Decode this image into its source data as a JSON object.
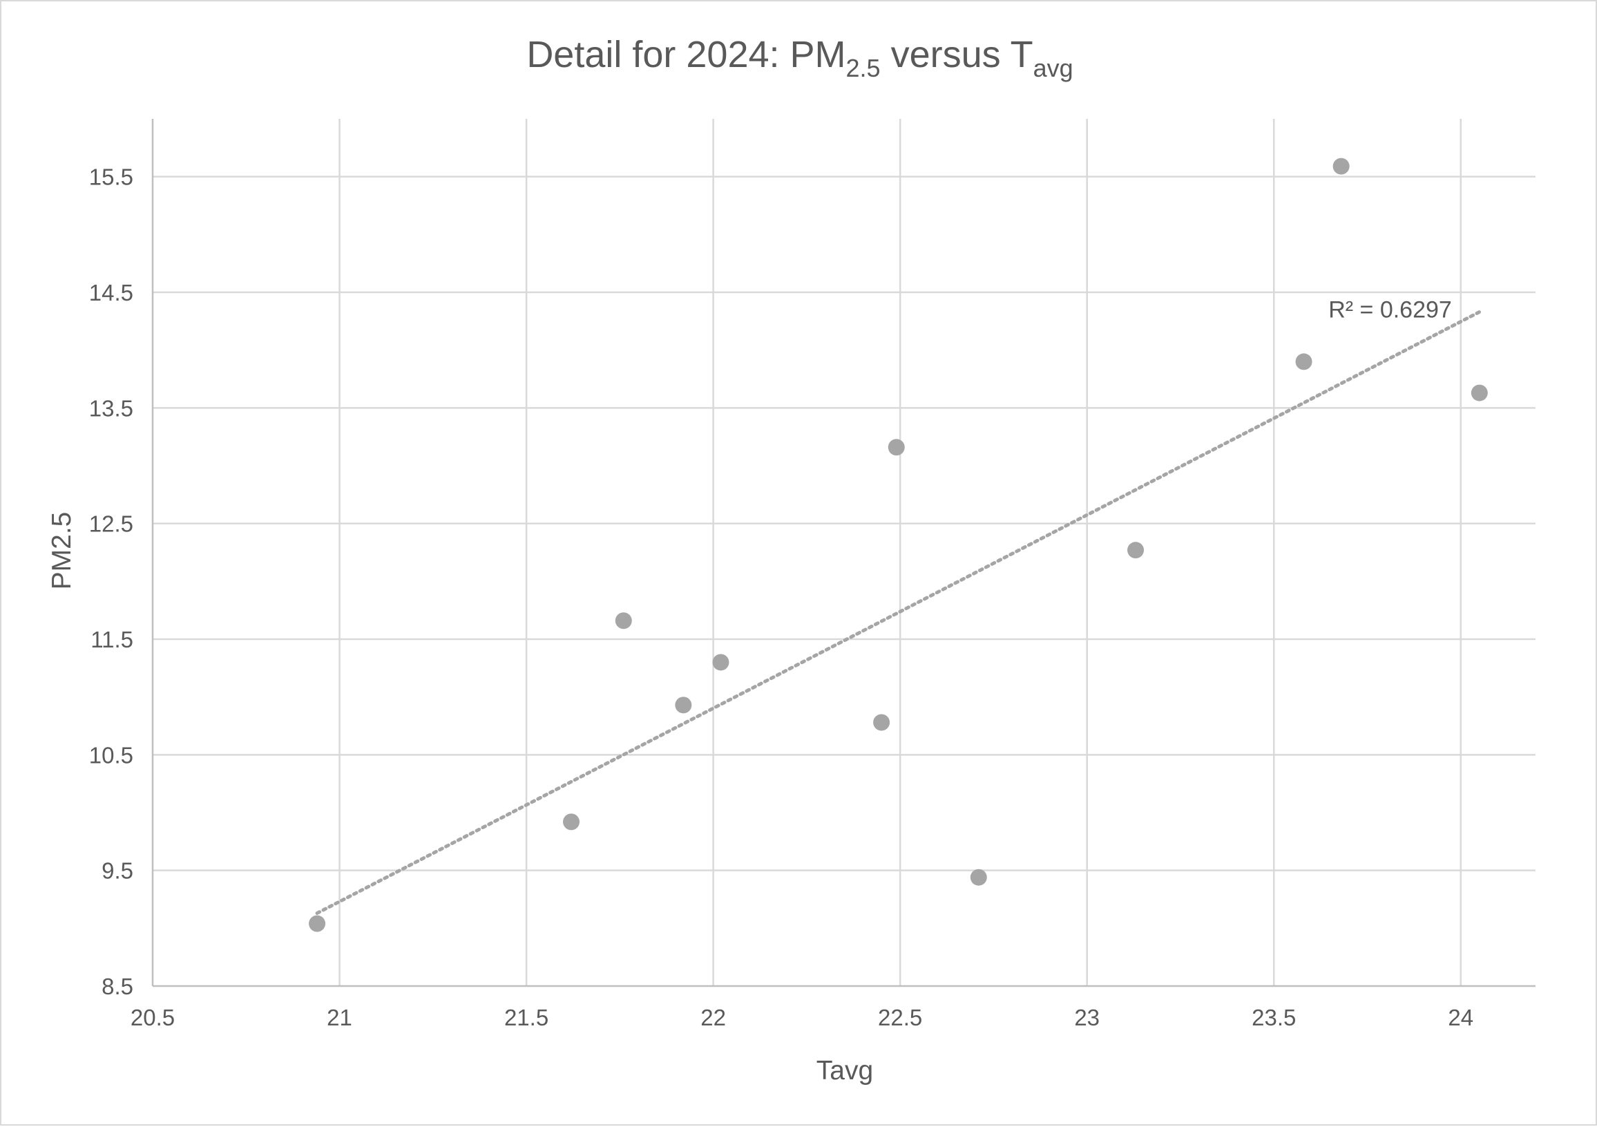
{
  "chart_data": {
    "type": "scatter",
    "title": {
      "prefix": "Detail for 2024: PM",
      "sub1": "2.5",
      "middle": " versus T",
      "sub2": "avg"
    },
    "xlabel": "Tavg",
    "ylabel": "PM2.5",
    "xlim": [
      20.5,
      24.2
    ],
    "ylim": [
      8.5,
      16.0
    ],
    "xticks": [
      20.5,
      21,
      21.5,
      22,
      22.5,
      23,
      23.5,
      24
    ],
    "xtick_labels": [
      "20.5",
      "21",
      "21.5",
      "22",
      "22.5",
      "23",
      "23.5",
      "24"
    ],
    "yticks": [
      8.5,
      9.5,
      10.5,
      11.5,
      12.5,
      13.5,
      14.5,
      15.5
    ],
    "ytick_labels": [
      "8.5",
      "9.5",
      "10.5",
      "11.5",
      "12.5",
      "13.5",
      "14.5",
      "15.5"
    ],
    "grid": true,
    "series": [
      {
        "x": [
          20.94,
          21.62,
          21.76,
          21.92,
          22.02,
          22.45,
          22.49,
          22.71,
          23.13,
          23.58,
          23.68,
          24.05
        ],
        "y": [
          9.04,
          9.92,
          11.66,
          10.93,
          11.3,
          10.78,
          13.16,
          9.44,
          12.27,
          13.9,
          15.59,
          13.63
        ],
        "color": "#a5a5a5"
      }
    ],
    "trendline": {
      "type": "linear",
      "x_range": [
        20.94,
        24.05
      ],
      "y_range": [
        9.13,
        14.33
      ],
      "color": "#a5a5a5",
      "style": "dotted",
      "label": "R² = 0.6297"
    }
  }
}
